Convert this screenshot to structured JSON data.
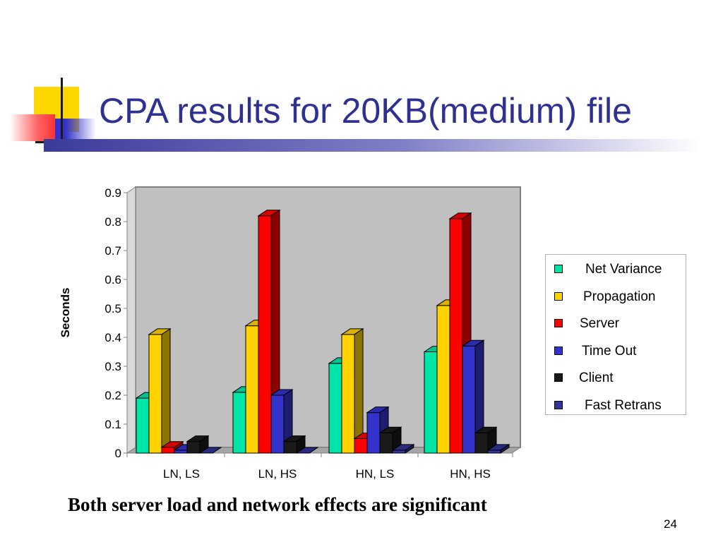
{
  "slide": {
    "title": "CPA results for 20KB(medium) file",
    "caption": "Both server load and network effects are significant",
    "page_number": "24"
  },
  "colors": {
    "title": "#2e3192",
    "deco_yellow": "#ffd700",
    "deco_red": "#ff3333",
    "deco_blue": "#3333cc",
    "plot_bg": "#c0c0c0"
  },
  "chart_data": {
    "type": "bar",
    "style": "3d-clustered",
    "categories": [
      "LN, LS",
      "LN, HS",
      "HN, LS",
      "HN, HS"
    ],
    "ylabel": "Seconds",
    "xlabel": "",
    "ylim": [
      0,
      0.9
    ],
    "yticks": [
      "0",
      "0.1",
      "0.2",
      "0.3",
      "0.4",
      "0.5",
      "0.6",
      "0.7",
      "0.8",
      "0.9"
    ],
    "grid": false,
    "legend_position": "right",
    "series": [
      {
        "name": "Net Variance",
        "color": "#00e5a8",
        "values": [
          0.19,
          0.21,
          0.31,
          0.35
        ]
      },
      {
        "name": "Propagation",
        "color": "#ffd200",
        "values": [
          0.41,
          0.44,
          0.41,
          0.51
        ]
      },
      {
        "name": "Server",
        "color": "#ff0000",
        "values": [
          0.02,
          0.82,
          0.05,
          0.81
        ]
      },
      {
        "name": "Time Out",
        "color": "#3333cc",
        "values": [
          0.01,
          0.2,
          0.14,
          0.37
        ]
      },
      {
        "name": "Client",
        "color": "#1a1a1a",
        "values": [
          0.04,
          0.04,
          0.07,
          0.07
        ]
      },
      {
        "name": "Fast Retrans",
        "color": "#333399",
        "values": [
          0.0,
          0.0,
          0.01,
          0.01
        ]
      }
    ]
  }
}
